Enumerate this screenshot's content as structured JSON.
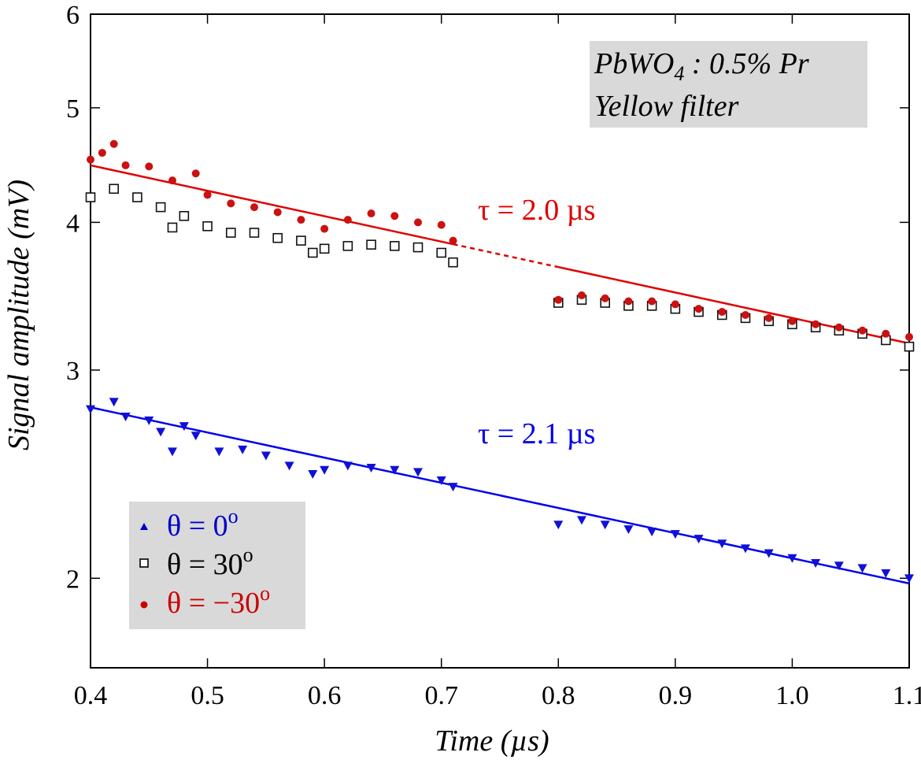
{
  "chart_data": {
    "type": "scatter",
    "xlabel": "Time (µs)",
    "ylabel": "Signal amplitude (mV)",
    "xlim": [
      0.4,
      1.1
    ],
    "ylim": [
      1.68,
      6
    ],
    "yscale": "log",
    "grid": false,
    "x_ticks": [
      "0.4",
      "0.5",
      "0.6",
      "0.7",
      "0.8",
      "0.9",
      "1.0",
      "1.1"
    ],
    "x_tick_values": [
      0.4,
      0.5,
      0.6,
      0.7,
      0.8,
      0.9,
      1.0,
      1.1
    ],
    "y_ticks": [
      "2",
      "3",
      "4",
      "5",
      "6"
    ],
    "y_tick_values": [
      2,
      3,
      4,
      5,
      6
    ],
    "annotation": {
      "line1_main": "PbWO",
      "line1_sub": "4",
      "line1_rest": " : 0.5% Pr",
      "line2": "Yellow filter"
    },
    "fits": [
      {
        "label": "τ = 2.0 µs",
        "color": "#e00000",
        "x": [
          0.4,
          1.1
        ],
        "y": [
          4.47,
          3.16
        ],
        "solid_until": [
          0.71,
          0.8
        ]
      },
      {
        "label": "τ = 2.1 µs",
        "color": "#0000ee",
        "x": [
          0.4,
          1.1
        ],
        "y": [
          2.79,
          1.98
        ]
      }
    ],
    "legend": {
      "position": "bottom-left",
      "entries": [
        {
          "theta": "θ = 0",
          "sup": "o",
          "marker": "triangle",
          "color": "#0000cc"
        },
        {
          "theta": "θ = 30",
          "sup": "o",
          "marker": "square",
          "color": "#000000"
        },
        {
          "theta": "θ = −30",
          "sup": "o",
          "marker": "circle",
          "color": "#cc0000"
        }
      ]
    },
    "series": [
      {
        "marker": "triangle-down",
        "color": "#1010d8",
        "segments": [
          {
            "x": [
              0.4,
              0.42,
              0.43,
              0.45,
              0.46,
              0.47,
              0.48,
              0.49,
              0.51,
              0.53,
              0.55,
              0.57,
              0.59,
              0.6,
              0.62,
              0.64,
              0.66,
              0.68,
              0.7,
              0.71
            ],
            "y": [
              2.78,
              2.82,
              2.74,
              2.72,
              2.66,
              2.56,
              2.69,
              2.64,
              2.56,
              2.57,
              2.54,
              2.49,
              2.45,
              2.47,
              2.49,
              2.48,
              2.47,
              2.46,
              2.42,
              2.39
            ]
          },
          {
            "x": [
              0.8,
              0.82,
              0.84,
              0.86,
              0.88,
              0.9,
              0.92,
              0.94,
              0.96,
              0.98,
              1.0,
              1.02,
              1.04,
              1.06,
              1.08,
              1.1
            ],
            "y": [
              2.22,
              2.24,
              2.22,
              2.2,
              2.19,
              2.18,
              2.16,
              2.14,
              2.12,
              2.1,
              2.08,
              2.06,
              2.05,
              2.04,
              2.02,
              2.0
            ]
          }
        ]
      },
      {
        "marker": "square",
        "color": "#111111",
        "segments": [
          {
            "x": [
              0.4,
              0.42,
              0.44,
              0.46,
              0.47,
              0.48,
              0.5,
              0.52,
              0.54,
              0.56,
              0.58,
              0.59,
              0.6,
              0.62,
              0.64,
              0.66,
              0.68,
              0.7,
              0.71
            ],
            "y": [
              4.2,
              4.27,
              4.2,
              4.12,
              3.96,
              4.05,
              3.97,
              3.92,
              3.92,
              3.88,
              3.86,
              3.77,
              3.8,
              3.82,
              3.83,
              3.82,
              3.81,
              3.77,
              3.7
            ]
          },
          {
            "x": [
              0.8,
              0.82,
              0.84,
              0.86,
              0.88,
              0.9,
              0.92,
              0.94,
              0.96,
              0.98,
              1.0,
              1.02,
              1.04,
              1.06,
              1.08,
              1.1
            ],
            "y": [
              3.42,
              3.44,
              3.42,
              3.4,
              3.4,
              3.38,
              3.36,
              3.34,
              3.32,
              3.3,
              3.28,
              3.26,
              3.24,
              3.22,
              3.18,
              3.14
            ]
          }
        ]
      },
      {
        "marker": "circle",
        "color": "#cc1111",
        "segments": [
          {
            "x": [
              0.4,
              0.41,
              0.42,
              0.43,
              0.45,
              0.47,
              0.49,
              0.5,
              0.52,
              0.54,
              0.56,
              0.58,
              0.6,
              0.62,
              0.64,
              0.66,
              0.68,
              0.7,
              0.71
            ],
            "y": [
              4.52,
              4.58,
              4.66,
              4.47,
              4.46,
              4.34,
              4.4,
              4.22,
              4.15,
              4.12,
              4.08,
              4.02,
              3.95,
              4.02,
              4.07,
              4.05,
              4.0,
              3.98,
              3.86
            ]
          },
          {
            "x": [
              0.8,
              0.82,
              0.84,
              0.86,
              0.88,
              0.9,
              0.92,
              0.94,
              0.96,
              0.98,
              1.0,
              1.02,
              1.04,
              1.06,
              1.08,
              1.1
            ],
            "y": [
              3.44,
              3.47,
              3.45,
              3.43,
              3.43,
              3.41,
              3.38,
              3.36,
              3.34,
              3.32,
              3.3,
              3.28,
              3.26,
              3.24,
              3.22,
              3.2
            ]
          }
        ]
      }
    ]
  }
}
